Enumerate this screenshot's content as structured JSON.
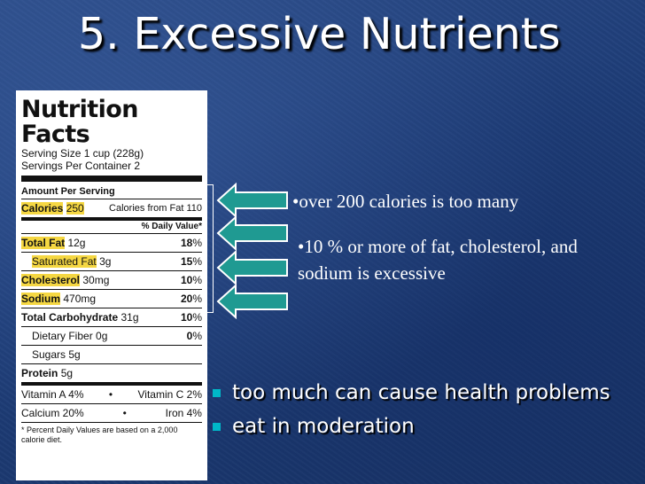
{
  "slide": {
    "title": "5.  Excessive Nutrients",
    "callouts": {
      "calories": "over 200 calories is too many",
      "percent": "10 % or more of fat, cholesterol, and sodium is excessive",
      "bullet_glyph": "•"
    },
    "bullets": [
      "too much can cause health problems",
      "eat in  moderation"
    ]
  },
  "label": {
    "title": "Nutrition Facts",
    "serving_size": "Serving Size 1 cup (228g)",
    "servings_per_container": "Servings Per Container 2",
    "amount_per_serving": "Amount Per Serving",
    "calories_label": "Calories",
    "calories_value": "250",
    "calories_from_fat": "Calories from Fat 110",
    "daily_value_header": "% Daily Value*",
    "nutrients": [
      {
        "name": "Total Fat",
        "amount": "12g",
        "dv": "18",
        "pct": "%"
      },
      {
        "name": "Saturated Fat",
        "amount": "3g",
        "dv": "15",
        "pct": "%"
      },
      {
        "name": "Cholesterol",
        "amount": "30mg",
        "dv": "10",
        "pct": "%"
      },
      {
        "name": "Sodium",
        "amount": "470mg",
        "dv": "20",
        "pct": "%"
      },
      {
        "name": "Total Carbohydrate",
        "amount": "31g",
        "dv": "10",
        "pct": "%"
      },
      {
        "name": "Dietary Fiber",
        "amount": "0g",
        "dv": "0",
        "pct": "%"
      },
      {
        "name": "Sugars",
        "amount": "5g"
      },
      {
        "name": "Protein",
        "amount": "5g"
      }
    ],
    "vitamins": [
      {
        "left": "Vitamin A 4%",
        "sep": "•",
        "right": "Vitamin C 2%"
      },
      {
        "left": "Calcium 20%",
        "sep": "•",
        "right": "Iron 4%"
      }
    ],
    "footnote": "* Percent Daily Values are based on a 2,000 calorie diet."
  },
  "colors": {
    "highlight": "#f5d742",
    "arrow_fill": "#1f9a92",
    "bullet": "#00b8c8"
  }
}
